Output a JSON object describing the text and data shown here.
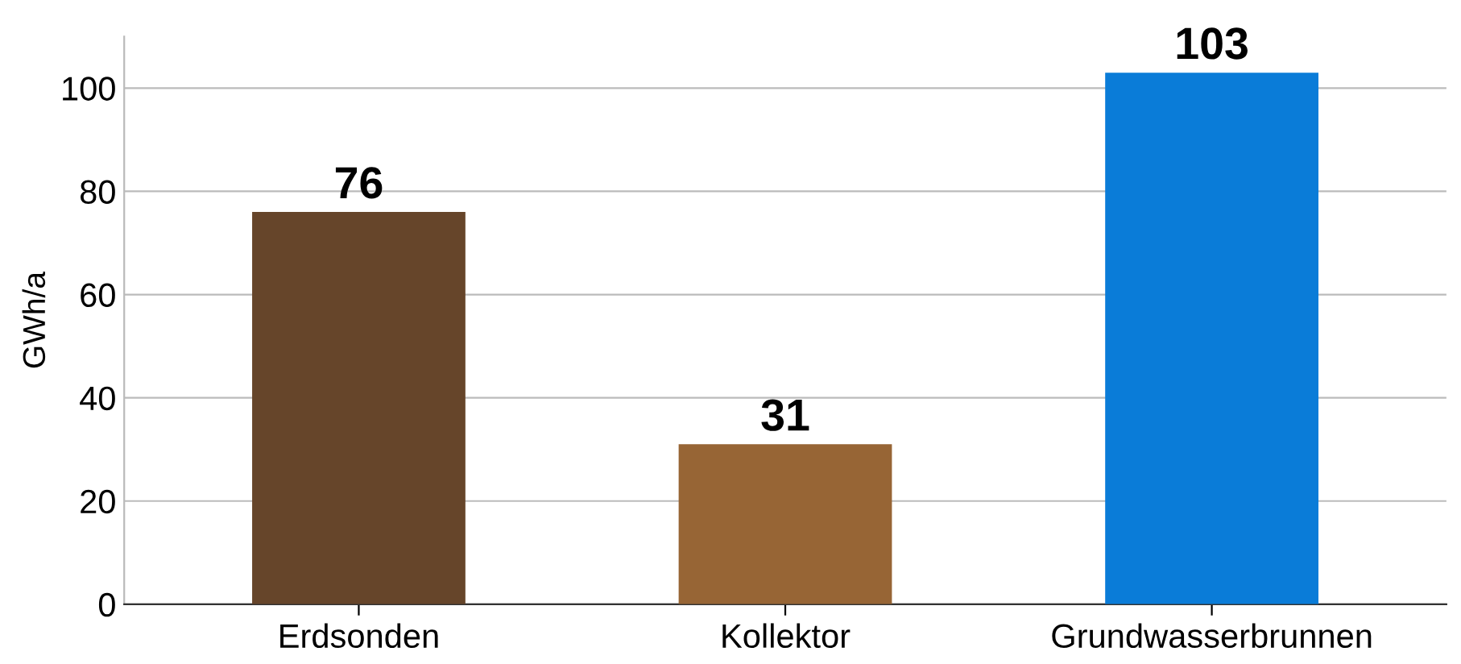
{
  "chart_data": {
    "type": "bar",
    "ylabel": "GWh/a",
    "categories": [
      "Erdsonden",
      "Kollektor",
      "Grundwasserbrunnen"
    ],
    "values": [
      76,
      31,
      103
    ],
    "colors": [
      "#66452a",
      "#976535",
      "#0a7cd8"
    ],
    "ylim": [
      0,
      110
    ],
    "yticks": [
      0,
      20,
      40,
      60,
      80,
      100
    ],
    "grid": "y",
    "data_labels": true
  }
}
